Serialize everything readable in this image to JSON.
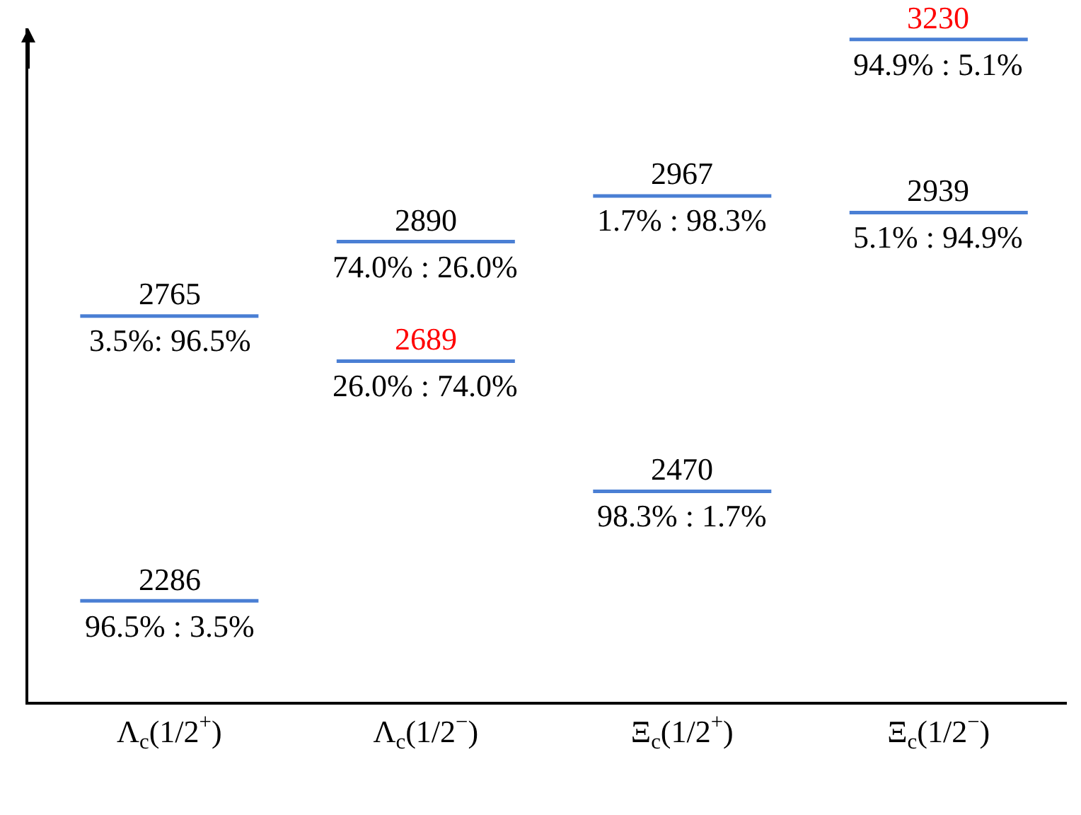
{
  "chart_data": {
    "type": "other",
    "categories": [
      "Λ$_{c}$(1/2$^{+}$)",
      "Λ$_{c}$(1/2$^{−}$)",
      "Ξ$_{c}$(1/2$^{+}$)",
      "Ξ$_{c}$(1/2$^{−}$)"
    ],
    "series": [
      {
        "color": "#4a7fd4",
        "values": [
          2286,
          null,
          2470,
          2939
        ]
      },
      {
        "color": "#4a7fd4",
        "values": [
          2765,
          2890,
          2967,
          null
        ]
      },
      {
        "color": "#4a7fd4",
        "values": [
          null,
          2689,
          null,
          3230
        ]
      }
    ],
    "data_labels": true,
    "annotations": [
      "96.5% : 3.5%",
      "98.3% : 1.7%",
      "5.1% : 94.9%",
      "3.5%: 96.5%",
      "74.0% : 26.0%",
      "1.7% : 98.3%",
      "26.0% : 74.0%",
      "94.9% : 5.1%"
    ]
  }
}
